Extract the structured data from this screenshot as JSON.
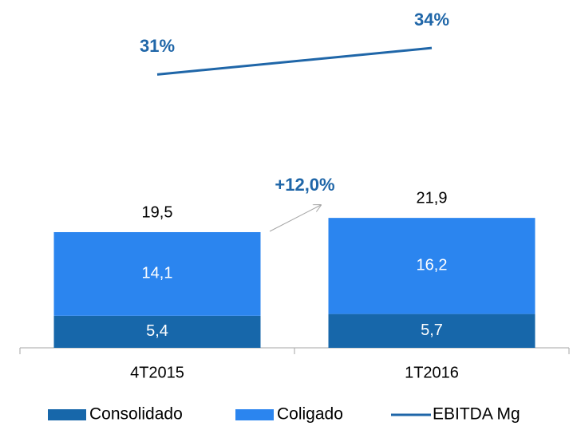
{
  "chart_data": {
    "type": "bar",
    "stacked": true,
    "categories": [
      "4T2015",
      "1T2016"
    ],
    "series": [
      {
        "name": "Consolidado",
        "color": "#1767aa",
        "values": [
          5.4,
          5.7
        ],
        "value_labels": [
          "5,4",
          "5,7"
        ]
      },
      {
        "name": "Coligado",
        "color": "#2b85ef",
        "values": [
          14.1,
          16.2
        ],
        "value_labels": [
          "14,1",
          "16,2"
        ]
      },
      {
        "name": "EBITDA Mg",
        "type": "line",
        "axis": "y2",
        "color": "#1f66a8",
        "values": [
          31,
          34
        ],
        "value_labels": [
          "31%",
          "34%"
        ]
      }
    ],
    "totals": [
      19.5,
      21.9
    ],
    "total_labels": [
      "19,5",
      "21,9"
    ],
    "annotation": "+12,0%",
    "ylim": [
      0,
      55
    ],
    "y2lim": [
      0,
      37
    ],
    "legend": "bottom"
  }
}
